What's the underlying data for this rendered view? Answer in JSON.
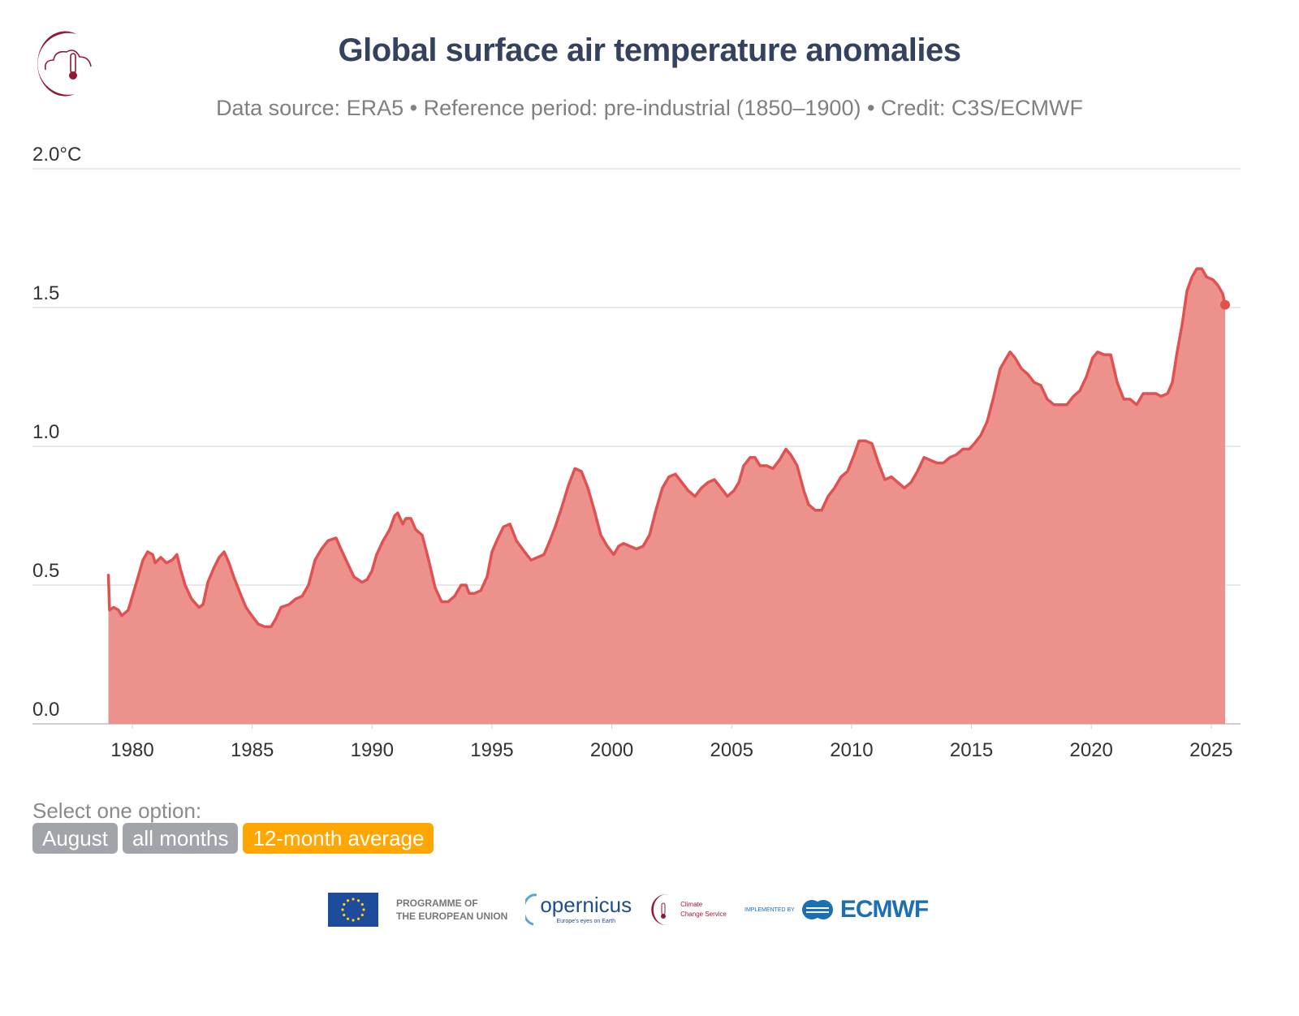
{
  "header": {
    "title": "Global surface air temperature anomalies",
    "subtitle": "Data source: ERA5 • Reference period: pre-industrial (1850–1900) • Credit: C3S/ECMWF"
  },
  "controls": {
    "label": "Select one option:",
    "options": [
      {
        "label": "August",
        "active": false
      },
      {
        "label": "all months",
        "active": false
      },
      {
        "label": "12-month average",
        "active": true
      }
    ]
  },
  "footer": {
    "eu_line1": "PROGRAMME OF",
    "eu_line2": "THE EUROPEAN UNION",
    "copernicus": "opernicus",
    "copernicus_tagline": "Europe's eyes on Earth",
    "ccs_line1": "Climate",
    "ccs_line2": "Change Service",
    "implemented_by": "IMPLEMENTED BY",
    "ecmwf": "ECMWF"
  },
  "colors": {
    "line": "#e05252",
    "fill": "#ec918c",
    "title": "#34425f",
    "active_option": "#ffa600",
    "inactive_option": "#a1a4a9",
    "logo": "#8e1a37"
  },
  "chart_data": {
    "type": "area",
    "title": "Global surface air temperature anomalies",
    "ylabel": "",
    "xlabel": "",
    "unit": "°C",
    "ylim": [
      0,
      2.0
    ],
    "xlim": [
      1978.9,
      2025.9
    ],
    "grid": true,
    "yticks": [
      {
        "value": 2.0,
        "label": "2.0°C"
      },
      {
        "value": 1.5,
        "label": "1.5"
      },
      {
        "value": 1.0,
        "label": "1.0"
      },
      {
        "value": 0.5,
        "label": "0.5"
      },
      {
        "value": 0.0,
        "label": "0.0"
      }
    ],
    "xticks": [
      {
        "value": 1980,
        "label": "1980"
      },
      {
        "value": 1985,
        "label": "1985"
      },
      {
        "value": 1990,
        "label": "1990"
      },
      {
        "value": 1995,
        "label": "1995"
      },
      {
        "value": 2000,
        "label": "2000"
      },
      {
        "value": 2005,
        "label": "2005"
      },
      {
        "value": 2010,
        "label": "2010"
      },
      {
        "value": 2015,
        "label": "2015"
      },
      {
        "value": 2020,
        "label": "2020"
      },
      {
        "value": 2025,
        "label": "2025"
      }
    ],
    "series": [
      {
        "x": [
          1979.0,
          1979.05,
          1979.22,
          1979.42,
          1979.56,
          1979.83,
          1980.0,
          1980.24,
          1980.44,
          1980.64,
          1980.85,
          1980.95,
          1981.19,
          1981.42,
          1981.66,
          1981.86,
          1982.0,
          1982.2,
          1982.47,
          1982.78,
          1982.95,
          1983.15,
          1983.39,
          1983.62,
          1983.83,
          1984.03,
          1984.23,
          1984.5,
          1984.74,
          1984.98,
          1985.25,
          1985.52,
          1985.79,
          1985.99,
          1986.2,
          1986.54,
          1986.81,
          1987.08,
          1987.35,
          1987.62,
          1987.89,
          1988.16,
          1988.5,
          1988.7,
          1988.97,
          1989.24,
          1989.58,
          1989.79,
          1989.99,
          1990.19,
          1990.46,
          1990.73,
          1990.94,
          1991.07,
          1991.28,
          1991.41,
          1991.62,
          1991.82,
          1992.09,
          1992.36,
          1992.63,
          1992.9,
          1993.17,
          1993.44,
          1993.71,
          1993.92,
          1994.05,
          1994.26,
          1994.53,
          1994.8,
          1995.0,
          1995.2,
          1995.48,
          1995.75,
          1996.02,
          1996.36,
          1996.63,
          1996.9,
          1997.17,
          1997.37,
          1997.64,
          1997.91,
          1998.19,
          1998.46,
          1998.73,
          1999.0,
          1999.27,
          1999.54,
          1999.81,
          2000.08,
          2000.28,
          2000.49,
          2000.76,
          2001.03,
          2001.3,
          2001.57,
          2001.84,
          2002.11,
          2002.38,
          2002.65,
          2002.92,
          2003.19,
          2003.47,
          2003.74,
          2004.01,
          2004.28,
          2004.55,
          2004.82,
          2005.09,
          2005.3,
          2005.5,
          2005.77,
          2005.97,
          2006.18,
          2006.45,
          2006.72,
          2006.99,
          2007.26,
          2007.46,
          2007.73,
          2008.01,
          2008.21,
          2008.48,
          2008.75,
          2009.02,
          2009.29,
          2009.56,
          2009.83,
          2010.11,
          2010.31,
          2010.58,
          2010.85,
          2011.12,
          2011.39,
          2011.66,
          2011.93,
          2012.2,
          2012.48,
          2012.75,
          2013.02,
          2013.29,
          2013.56,
          2013.83,
          2014.1,
          2014.37,
          2014.64,
          2014.91,
          2015.12,
          2015.39,
          2015.66,
          2015.93,
          2016.2,
          2016.4,
          2016.61,
          2016.81,
          2017.08,
          2017.35,
          2017.62,
          2017.89,
          2018.16,
          2018.44,
          2018.71,
          2018.98,
          2019.25,
          2019.52,
          2019.79,
          2020.06,
          2020.26,
          2020.54,
          2020.81,
          2021.08,
          2021.35,
          2021.62,
          2021.89,
          2022.16,
          2022.43,
          2022.7,
          2022.91,
          2023.18,
          2023.38,
          2023.58,
          2023.79,
          2023.99,
          2024.2,
          2024.4,
          2024.61,
          2024.81,
          2025.08,
          2025.28,
          2025.48,
          2025.58
        ],
        "y": [
          0.54,
          0.41,
          0.42,
          0.41,
          0.39,
          0.41,
          0.46,
          0.53,
          0.59,
          0.62,
          0.61,
          0.58,
          0.6,
          0.58,
          0.59,
          0.61,
          0.56,
          0.5,
          0.45,
          0.42,
          0.43,
          0.51,
          0.56,
          0.6,
          0.62,
          0.58,
          0.53,
          0.47,
          0.42,
          0.39,
          0.36,
          0.35,
          0.35,
          0.38,
          0.42,
          0.43,
          0.45,
          0.46,
          0.5,
          0.59,
          0.63,
          0.66,
          0.67,
          0.63,
          0.58,
          0.53,
          0.51,
          0.52,
          0.55,
          0.61,
          0.66,
          0.7,
          0.75,
          0.76,
          0.72,
          0.74,
          0.74,
          0.7,
          0.68,
          0.59,
          0.49,
          0.44,
          0.44,
          0.46,
          0.5,
          0.5,
          0.47,
          0.47,
          0.48,
          0.53,
          0.62,
          0.66,
          0.71,
          0.72,
          0.66,
          0.62,
          0.59,
          0.6,
          0.61,
          0.65,
          0.71,
          0.78,
          0.86,
          0.92,
          0.91,
          0.85,
          0.77,
          0.68,
          0.64,
          0.61,
          0.64,
          0.65,
          0.64,
          0.63,
          0.64,
          0.68,
          0.77,
          0.85,
          0.89,
          0.9,
          0.87,
          0.84,
          0.82,
          0.85,
          0.87,
          0.88,
          0.85,
          0.82,
          0.84,
          0.87,
          0.93,
          0.96,
          0.96,
          0.93,
          0.93,
          0.92,
          0.95,
          0.99,
          0.97,
          0.93,
          0.84,
          0.79,
          0.77,
          0.77,
          0.82,
          0.85,
          0.89,
          0.91,
          0.97,
          1.02,
          1.02,
          1.01,
          0.94,
          0.88,
          0.89,
          0.87,
          0.85,
          0.87,
          0.91,
          0.96,
          0.95,
          0.94,
          0.94,
          0.96,
          0.97,
          0.99,
          0.99,
          1.01,
          1.04,
          1.09,
          1.18,
          1.28,
          1.31,
          1.34,
          1.32,
          1.28,
          1.26,
          1.23,
          1.22,
          1.17,
          1.15,
          1.15,
          1.15,
          1.18,
          1.2,
          1.25,
          1.32,
          1.34,
          1.33,
          1.33,
          1.23,
          1.17,
          1.17,
          1.15,
          1.19,
          1.19,
          1.19,
          1.18,
          1.19,
          1.23,
          1.34,
          1.44,
          1.56,
          1.61,
          1.64,
          1.64,
          1.61,
          1.6,
          1.58,
          1.55,
          1.51
        ]
      }
    ]
  }
}
